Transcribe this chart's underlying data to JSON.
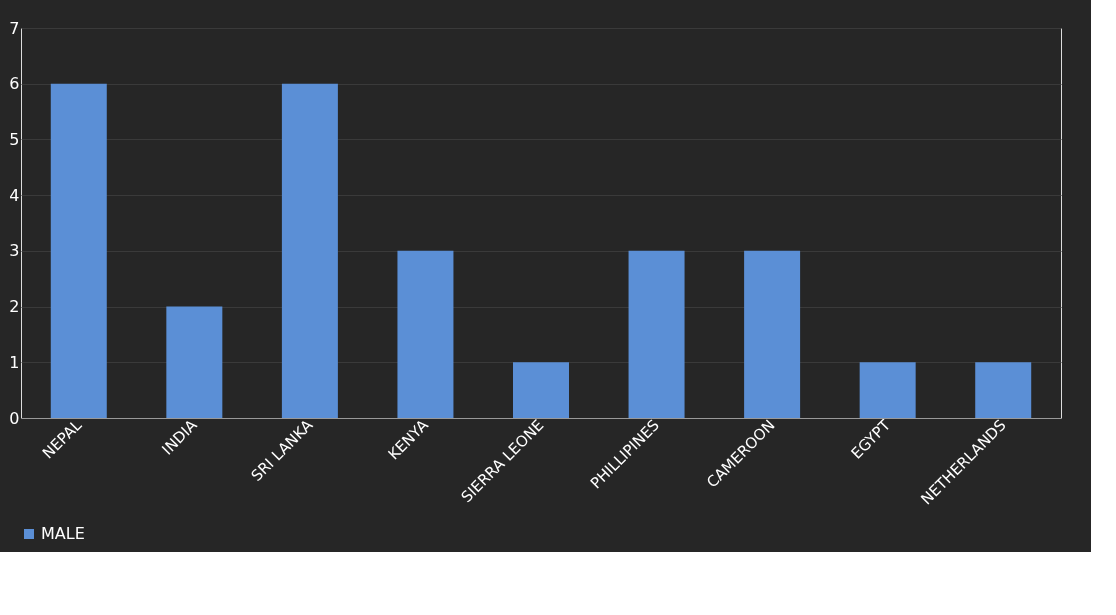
{
  "chart_data": {
    "type": "bar",
    "categories": [
      "NEPAL",
      "INDIA",
      "SRI LANKA",
      "KENYA",
      "SIERRA LEONE",
      "PHILLIPINES",
      "CAMEROON",
      "EGYPT",
      "NETHERLANDS"
    ],
    "series": [
      {
        "name": "MALE",
        "color": "#5b8fd6",
        "values": [
          6,
          2,
          6,
          3,
          1,
          3,
          3,
          1,
          1
        ]
      }
    ],
    "ylim": [
      0,
      7
    ],
    "yticks": [
      0,
      1,
      2,
      3,
      4,
      5,
      6,
      7
    ],
    "grid": "y",
    "legend": "bottom"
  }
}
